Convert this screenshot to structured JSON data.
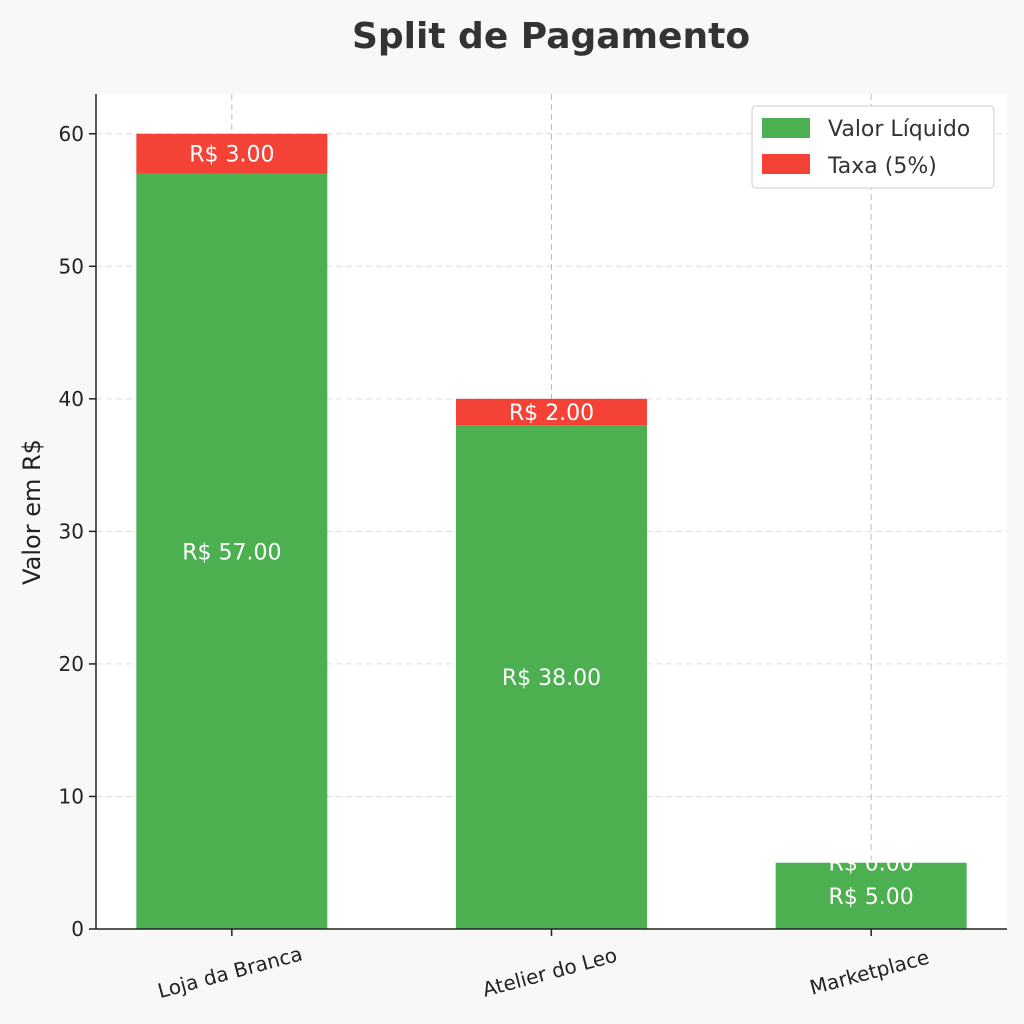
{
  "chart_data": {
    "type": "bar",
    "stacked": true,
    "title": "Split de Pagamento",
    "xlabel": "",
    "ylabel": "Valor em R$",
    "categories": [
      "Loja da Branca",
      "Atelier do Leo",
      "Marketplace"
    ],
    "series": [
      {
        "name": "Valor Líquido",
        "color": "#4caf50",
        "values": [
          57,
          38,
          5
        ],
        "labels": [
          "R$ 57.00",
          "R$ 38.00",
          "R$ 5.00"
        ]
      },
      {
        "name": "Taxa (5%)",
        "color": "#f44336",
        "values": [
          3,
          2,
          0
        ],
        "labels": [
          "R$ 3.00",
          "R$ 2.00",
          "R$ 0.00"
        ]
      }
    ],
    "ylim": [
      0,
      63
    ],
    "yticks": [
      0,
      10,
      20,
      30,
      40,
      50,
      60
    ],
    "grid": true,
    "legend_position": "top-right"
  }
}
